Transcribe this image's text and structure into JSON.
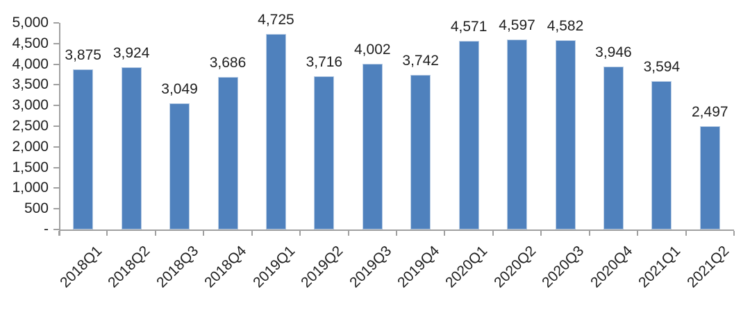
{
  "chart_data": {
    "type": "bar",
    "title": "",
    "xlabel": "",
    "ylabel": "",
    "categories": [
      "2018Q1",
      "2018Q2",
      "2018Q3",
      "2018Q4",
      "2019Q1",
      "2019Q2",
      "2019Q3",
      "2019Q4",
      "2020Q1",
      "2020Q2",
      "2020Q3",
      "2020Q4",
      "2021Q1",
      "2021Q2"
    ],
    "values": [
      3875,
      3924,
      3049,
      3686,
      4725,
      3716,
      4002,
      3742,
      4571,
      4597,
      4582,
      3946,
      3594,
      2497
    ],
    "data_labels": [
      "3,875",
      "3,924",
      "3,049",
      "3,686",
      "4,725",
      "3,716",
      "4,002",
      "3,742",
      "4,571",
      "4,597",
      "4,582",
      "3,946",
      "3,594",
      "2,497"
    ],
    "ylim": [
      0,
      5000
    ],
    "ytick_step": 500,
    "ytick_labels_ascending": [
      "-",
      "500",
      "1,000",
      "1,500",
      "2,000",
      "2,500",
      "3,000",
      "3,500",
      "4,000",
      "4,500",
      "5,000"
    ],
    "grid": "off",
    "legend": "none",
    "colors": {
      "bar_fill": "#4F81BD",
      "bar_border": "#B9CDE5",
      "axis": "#A0A0A0",
      "text": "#1f1f1f"
    }
  }
}
